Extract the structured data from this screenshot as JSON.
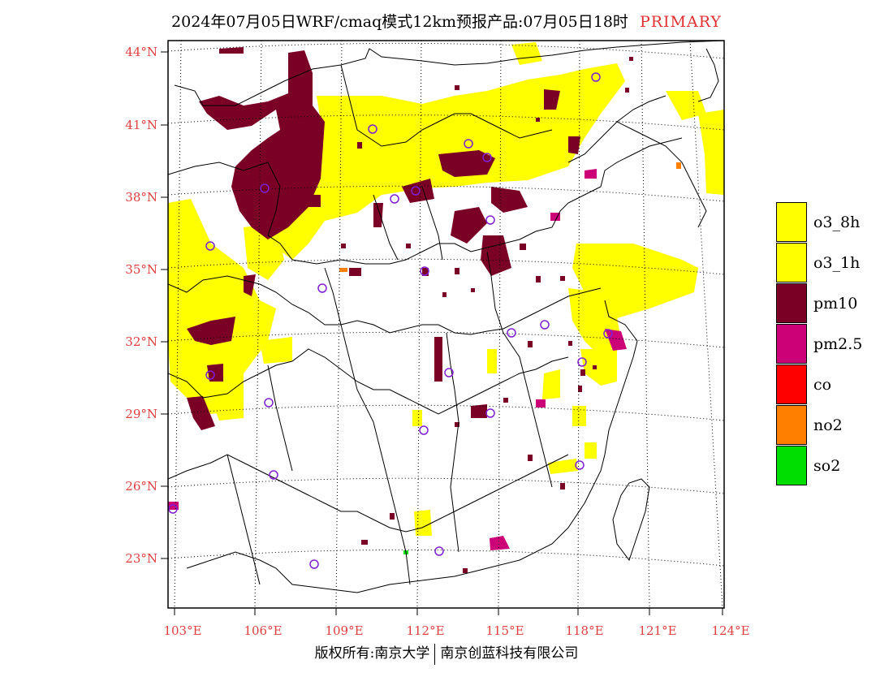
{
  "title": {
    "text": "2024年07月05日WRF/cmaq模式12km预报产品:07月05日18时",
    "tag": "PRIMARY"
  },
  "axes": {
    "lat_labels": [
      "44°N",
      "41°N",
      "38°N",
      "35°N",
      "32°N",
      "29°N",
      "26°N",
      "23°N"
    ],
    "lon_labels": [
      "103°E",
      "106°E",
      "109°E",
      "112°E",
      "115°E",
      "118°E",
      "121°E",
      "124°E"
    ]
  },
  "legend": {
    "items": [
      {
        "label": "o3_8h",
        "color": "#ffff00"
      },
      {
        "label": "o3_1h",
        "color": "#ffff00"
      },
      {
        "label": "pm10",
        "color": "#7a0026"
      },
      {
        "label": "pm2.5",
        "color": "#cc0077"
      },
      {
        "label": "co",
        "color": "#ff0000"
      },
      {
        "label": "no2",
        "color": "#ff7f00"
      },
      {
        "label": "so2",
        "color": "#00dd00"
      }
    ]
  },
  "footer": {
    "left": "版权所有:南京大学",
    "right": "南京创蓝科技有限公司"
  },
  "map": {
    "layers": [
      "o3 yellow region",
      "pm10 dark red region",
      "pm2.5 magenta patches",
      "station circles"
    ],
    "station_color": "#8020d0",
    "gridline_style": "dotted"
  }
}
